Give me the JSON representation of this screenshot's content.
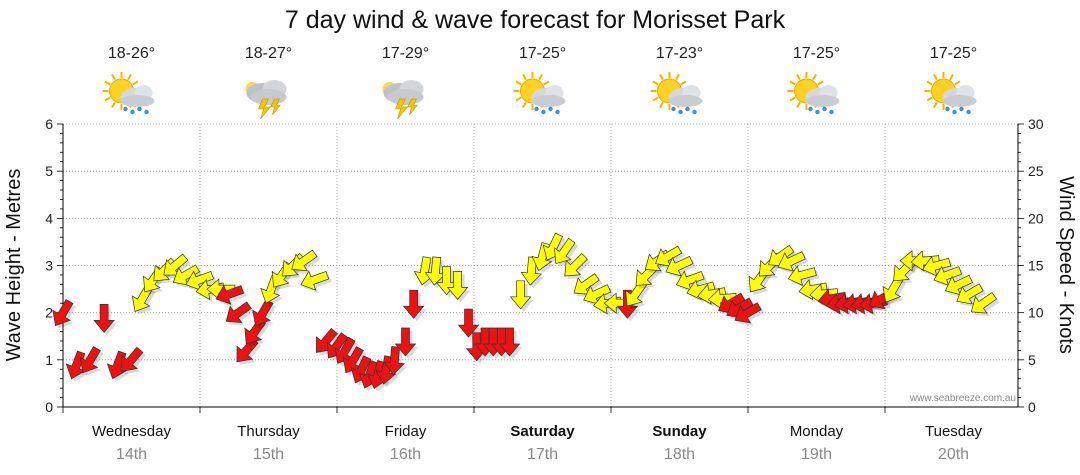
{
  "chart_data": {
    "type": "line",
    "title": "7 day wind & wave forecast for Morisset Park",
    "y_left_label": "Wave Height - Metres",
    "y_right_label": "Wind Speed - Knots",
    "y_left_range": [
      0,
      6
    ],
    "y_right_range": [
      0,
      30
    ],
    "y_left_ticks": [
      "0",
      "1",
      "2",
      "3",
      "4",
      "5",
      "6"
    ],
    "y_right_ticks": [
      "0",
      "5",
      "10",
      "15",
      "20",
      "25",
      "30"
    ],
    "grid": true,
    "watermark": "www.seabreeze.com.au",
    "days": [
      {
        "name": "Wednesday",
        "date": "14th",
        "temp": "18-26°",
        "icon": "partly-cloudy-showers-icon",
        "bold": false
      },
      {
        "name": "Thursday",
        "date": "15th",
        "temp": "18-27°",
        "icon": "thunderstorm-icon",
        "bold": false
      },
      {
        "name": "Friday",
        "date": "16th",
        "temp": "17-29°",
        "icon": "thunderstorm-icon",
        "bold": false
      },
      {
        "name": "Saturday",
        "date": "17th",
        "temp": "17-25°",
        "icon": "partly-cloudy-showers-icon",
        "bold": true
      },
      {
        "name": "Sunday",
        "date": "18th",
        "temp": "17-23°",
        "icon": "partly-cloudy-showers-icon",
        "bold": true
      },
      {
        "name": "Monday",
        "date": "19th",
        "temp": "17-25°",
        "icon": "partly-cloudy-showers-icon",
        "bold": false
      },
      {
        "name": "Tuesday",
        "date": "20th",
        "temp": "17-25°",
        "icon": "partly-cloudy-showers-icon",
        "bold": false
      }
    ],
    "colors": {
      "wind_red": "#ee1111",
      "wind_yellow": "#ffff00",
      "arrow_stroke": "#333333",
      "grid": "#9a9a9a"
    },
    "series": [
      {
        "name": "Wind",
        "unit": "knots",
        "points": [
          {
            "t": 0.0,
            "v": 10.0,
            "dir": 210,
            "c": "red"
          },
          {
            "t": 0.1,
            "v": 4.5,
            "dir": 200,
            "c": "red"
          },
          {
            "t": 0.2,
            "v": 5.0,
            "dir": 210,
            "c": "red"
          },
          {
            "t": 0.3,
            "v": 9.5,
            "dir": 180,
            "c": "red"
          },
          {
            "t": 0.4,
            "v": 4.5,
            "dir": 200,
            "c": "red"
          },
          {
            "t": 0.5,
            "v": 5.0,
            "dir": 220,
            "c": "red"
          },
          {
            "t": 0.58,
            "v": 11.5,
            "dir": 210,
            "c": "yellow"
          },
          {
            "t": 0.66,
            "v": 13.5,
            "dir": 215,
            "c": "yellow"
          },
          {
            "t": 0.74,
            "v": 14.5,
            "dir": 225,
            "c": "yellow"
          },
          {
            "t": 0.82,
            "v": 15.0,
            "dir": 230,
            "c": "yellow"
          },
          {
            "t": 0.9,
            "v": 14.0,
            "dir": 240,
            "c": "yellow"
          },
          {
            "t": 1.0,
            "v": 13.5,
            "dir": 250,
            "c": "yellow"
          },
          {
            "t": 1.08,
            "v": 12.5,
            "dir": 260,
            "c": "yellow"
          },
          {
            "t": 1.16,
            "v": 12.5,
            "dir": 270,
            "c": "yellow"
          },
          {
            "t": 1.22,
            "v": 12.0,
            "dir": 250,
            "c": "red"
          },
          {
            "t": 1.28,
            "v": 10.0,
            "dir": 235,
            "c": "red"
          },
          {
            "t": 1.34,
            "v": 6.0,
            "dir": 220,
            "c": "red"
          },
          {
            "t": 1.4,
            "v": 8.0,
            "dir": 215,
            "c": "red"
          },
          {
            "t": 1.46,
            "v": 10.0,
            "dir": 210,
            "c": "red"
          },
          {
            "t": 1.52,
            "v": 12.5,
            "dir": 200,
            "c": "yellow"
          },
          {
            "t": 1.6,
            "v": 14.0,
            "dir": 215,
            "c": "yellow"
          },
          {
            "t": 1.68,
            "v": 15.0,
            "dir": 225,
            "c": "yellow"
          },
          {
            "t": 1.76,
            "v": 15.5,
            "dir": 235,
            "c": "yellow"
          },
          {
            "t": 1.84,
            "v": 13.5,
            "dir": 250,
            "c": "yellow"
          },
          {
            "t": 1.92,
            "v": 7.0,
            "dir": 220,
            "c": "red"
          },
          {
            "t": 2.0,
            "v": 6.5,
            "dir": 215,
            "c": "red"
          },
          {
            "t": 2.06,
            "v": 6.0,
            "dir": 210,
            "c": "red"
          },
          {
            "t": 2.12,
            "v": 5.0,
            "dir": 210,
            "c": "red"
          },
          {
            "t": 2.18,
            "v": 4.0,
            "dir": 205,
            "c": "red"
          },
          {
            "t": 2.24,
            "v": 3.5,
            "dir": 200,
            "c": "red"
          },
          {
            "t": 2.3,
            "v": 3.5,
            "dir": 195,
            "c": "red"
          },
          {
            "t": 2.36,
            "v": 4.0,
            "dir": 190,
            "c": "red"
          },
          {
            "t": 2.42,
            "v": 5.0,
            "dir": 185,
            "c": "red"
          },
          {
            "t": 2.5,
            "v": 7.0,
            "dir": 180,
            "c": "red"
          },
          {
            "t": 2.56,
            "v": 11.0,
            "dir": 180,
            "c": "red"
          },
          {
            "t": 2.64,
            "v": 14.5,
            "dir": 190,
            "c": "yellow"
          },
          {
            "t": 2.72,
            "v": 14.5,
            "dir": 185,
            "c": "yellow"
          },
          {
            "t": 2.8,
            "v": 13.5,
            "dir": 180,
            "c": "yellow"
          },
          {
            "t": 2.88,
            "v": 13.0,
            "dir": 180,
            "c": "yellow"
          },
          {
            "t": 2.96,
            "v": 9.0,
            "dir": 180,
            "c": "red"
          },
          {
            "t": 3.02,
            "v": 6.5,
            "dir": 180,
            "c": "red"
          },
          {
            "t": 3.08,
            "v": 7.0,
            "dir": 180,
            "c": "red"
          },
          {
            "t": 3.14,
            "v": 7.0,
            "dir": 180,
            "c": "red"
          },
          {
            "t": 3.2,
            "v": 7.0,
            "dir": 180,
            "c": "red"
          },
          {
            "t": 3.26,
            "v": 7.0,
            "dir": 180,
            "c": "red"
          },
          {
            "t": 3.34,
            "v": 12.0,
            "dir": 180,
            "c": "yellow"
          },
          {
            "t": 3.42,
            "v": 14.5,
            "dir": 185,
            "c": "yellow"
          },
          {
            "t": 3.5,
            "v": 16.0,
            "dir": 195,
            "c": "yellow"
          },
          {
            "t": 3.58,
            "v": 17.0,
            "dir": 205,
            "c": "yellow"
          },
          {
            "t": 3.66,
            "v": 16.5,
            "dir": 215,
            "c": "yellow"
          },
          {
            "t": 3.74,
            "v": 15.0,
            "dir": 225,
            "c": "yellow"
          },
          {
            "t": 3.82,
            "v": 13.0,
            "dir": 235,
            "c": "yellow"
          },
          {
            "t": 3.9,
            "v": 12.0,
            "dir": 245,
            "c": "yellow"
          },
          {
            "t": 3.98,
            "v": 11.0,
            "dir": 260,
            "c": "yellow"
          },
          {
            "t": 4.06,
            "v": 11.0,
            "dir": 270,
            "c": "yellow"
          },
          {
            "t": 4.12,
            "v": 11.0,
            "dir": 180,
            "c": "red"
          },
          {
            "t": 4.18,
            "v": 12.0,
            "dir": 215,
            "c": "yellow"
          },
          {
            "t": 4.26,
            "v": 14.0,
            "dir": 225,
            "c": "yellow"
          },
          {
            "t": 4.34,
            "v": 15.5,
            "dir": 235,
            "c": "yellow"
          },
          {
            "t": 4.42,
            "v": 16.0,
            "dir": 240,
            "c": "yellow"
          },
          {
            "t": 4.5,
            "v": 15.0,
            "dir": 245,
            "c": "yellow"
          },
          {
            "t": 4.58,
            "v": 13.5,
            "dir": 250,
            "c": "yellow"
          },
          {
            "t": 4.66,
            "v": 12.5,
            "dir": 255,
            "c": "yellow"
          },
          {
            "t": 4.74,
            "v": 12.0,
            "dir": 260,
            "c": "yellow"
          },
          {
            "t": 4.82,
            "v": 11.5,
            "dir": 265,
            "c": "yellow"
          },
          {
            "t": 4.88,
            "v": 11.0,
            "dir": 240,
            "c": "red"
          },
          {
            "t": 4.94,
            "v": 10.5,
            "dir": 240,
            "c": "red"
          },
          {
            "t": 5.0,
            "v": 10.0,
            "dir": 240,
            "c": "red"
          },
          {
            "t": 5.08,
            "v": 13.5,
            "dir": 215,
            "c": "yellow"
          },
          {
            "t": 5.16,
            "v": 15.0,
            "dir": 225,
            "c": "yellow"
          },
          {
            "t": 5.24,
            "v": 16.0,
            "dir": 235,
            "c": "yellow"
          },
          {
            "t": 5.32,
            "v": 15.5,
            "dir": 245,
            "c": "yellow"
          },
          {
            "t": 5.4,
            "v": 14.0,
            "dir": 255,
            "c": "yellow"
          },
          {
            "t": 5.48,
            "v": 12.5,
            "dir": 260,
            "c": "yellow"
          },
          {
            "t": 5.56,
            "v": 12.0,
            "dir": 265,
            "c": "yellow"
          },
          {
            "t": 5.62,
            "v": 11.5,
            "dir": 260,
            "c": "red"
          },
          {
            "t": 5.68,
            "v": 11.0,
            "dir": 260,
            "c": "red"
          },
          {
            "t": 5.74,
            "v": 11.0,
            "dir": 260,
            "c": "red"
          },
          {
            "t": 5.8,
            "v": 11.0,
            "dir": 260,
            "c": "red"
          },
          {
            "t": 5.86,
            "v": 11.0,
            "dir": 260,
            "c": "red"
          },
          {
            "t": 5.92,
            "v": 11.0,
            "dir": 260,
            "c": "red"
          },
          {
            "t": 5.98,
            "v": 11.5,
            "dir": 240,
            "c": "red"
          },
          {
            "t": 6.06,
            "v": 12.5,
            "dir": 210,
            "c": "yellow"
          },
          {
            "t": 6.14,
            "v": 14.5,
            "dir": 225,
            "c": "yellow"
          },
          {
            "t": 6.22,
            "v": 15.5,
            "dir": 270,
            "c": "yellow"
          },
          {
            "t": 6.3,
            "v": 15.5,
            "dir": 265,
            "c": "yellow"
          },
          {
            "t": 6.38,
            "v": 15.0,
            "dir": 255,
            "c": "yellow"
          },
          {
            "t": 6.46,
            "v": 14.0,
            "dir": 250,
            "c": "yellow"
          },
          {
            "t": 6.54,
            "v": 13.0,
            "dir": 245,
            "c": "yellow"
          },
          {
            "t": 6.62,
            "v": 12.0,
            "dir": 240,
            "c": "yellow"
          },
          {
            "t": 6.72,
            "v": 11.0,
            "dir": 235,
            "c": "yellow"
          }
        ]
      }
    ]
  }
}
